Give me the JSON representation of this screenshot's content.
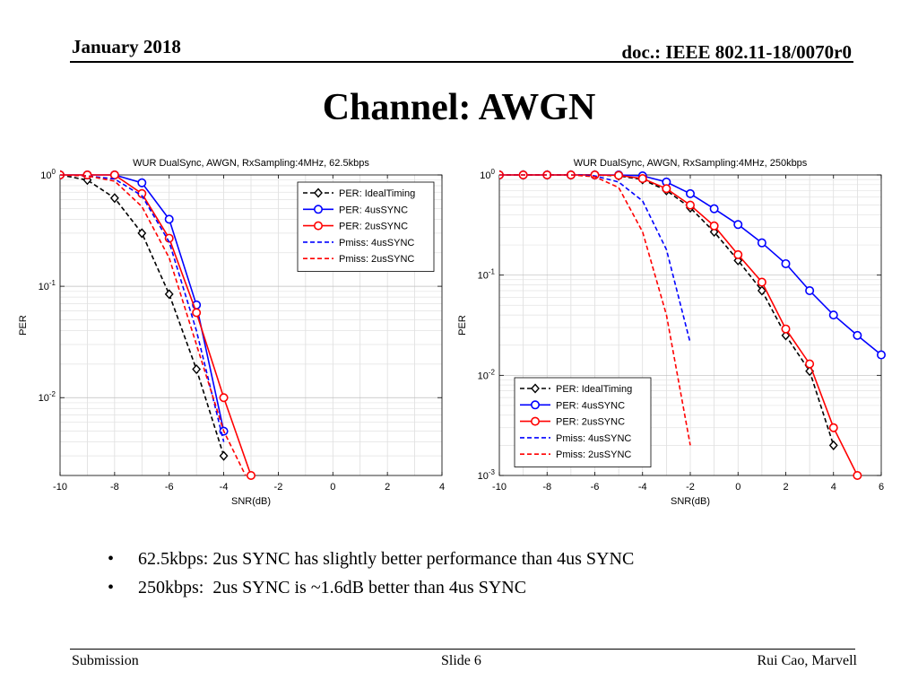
{
  "header": {
    "date": "January 2018",
    "doc": "doc.: IEEE 802.11-18/0070r0"
  },
  "title": "Channel: AWGN",
  "bullets": [
    "62.5kbps: 2us SYNC has slightly better performance than 4us SYNC",
    "250kbps:  2us SYNC is ~1.6dB better than 4us SYNC"
  ],
  "footer": {
    "left": "Submission",
    "center": "Slide 6",
    "right": "Rui Cao, Marvell"
  },
  "colors": {
    "ideal": "#000000",
    "sync4": "#0000ff",
    "sync2": "#ff0000"
  },
  "chart_data": [
    {
      "type": "line",
      "title": "WUR DualSync, AWGN, RxSampling:4MHz, 62.5kbps",
      "xlabel": "SNR(dB)",
      "ylabel": "PER",
      "xlim": [
        -10,
        4
      ],
      "ylim": [
        0.002,
        1
      ],
      "yscale": "log",
      "xticks": [
        "-10",
        "-8",
        "-6",
        "-4",
        "-2",
        "0",
        "2",
        "4"
      ],
      "yticks": [
        "10^0",
        "10^-1",
        "10^-2"
      ],
      "grid": true,
      "legend_position": "top-right",
      "series": [
        {
          "name": "PER: IdealTiming",
          "color": "#000000",
          "dash": "dashed",
          "marker": "diamond",
          "x": [
            -10,
            -9,
            -8,
            -7,
            -6,
            -5,
            -4
          ],
          "y": [
            1.0,
            0.9,
            0.62,
            0.3,
            0.085,
            0.018,
            0.003
          ]
        },
        {
          "name": "PER: 4usSYNC",
          "color": "#0000ff",
          "dash": "solid",
          "marker": "circle",
          "x": [
            -10,
            -9,
            -8,
            -7,
            -6,
            -5,
            -4
          ],
          "y": [
            1.0,
            1.0,
            1.0,
            0.85,
            0.4,
            0.068,
            0.005
          ]
        },
        {
          "name": "PER: 2usSYNC",
          "color": "#ff0000",
          "dash": "solid",
          "marker": "circle",
          "x": [
            -10,
            -9,
            -8,
            -7,
            -6,
            -5,
            -4,
            -3
          ],
          "y": [
            1.0,
            1.0,
            1.0,
            0.68,
            0.27,
            0.058,
            0.01,
            0.002
          ]
        },
        {
          "name": "Pmiss: 4usSYNC",
          "color": "#0000ff",
          "dash": "dashed",
          "marker": "none",
          "x": [
            -10,
            -9,
            -8,
            -7,
            -6,
            -5,
            -4
          ],
          "y": [
            1.0,
            0.98,
            0.92,
            0.65,
            0.25,
            0.04,
            0.004
          ]
        },
        {
          "name": "Pmiss: 2usSYNC",
          "color": "#ff0000",
          "dash": "dashed",
          "marker": "none",
          "x": [
            -10,
            -9,
            -8,
            -7,
            -6,
            -5,
            -4,
            -3.2
          ],
          "y": [
            1.0,
            0.98,
            0.88,
            0.52,
            0.18,
            0.03,
            0.005,
            0.002
          ]
        }
      ]
    },
    {
      "type": "line",
      "title": "WUR DualSync, AWGN, RxSampling:4MHz, 250kbps",
      "xlabel": "SNR(dB)",
      "ylabel": "PER",
      "xlim": [
        -10,
        6
      ],
      "ylim": [
        0.001,
        1
      ],
      "yscale": "log",
      "xticks": [
        "-10",
        "-8",
        "-6",
        "-4",
        "-2",
        "0",
        "2",
        "4",
        "6"
      ],
      "yticks": [
        "10^0",
        "10^-1",
        "10^-2",
        "10^-3"
      ],
      "grid": true,
      "legend_position": "bottom-center",
      "series": [
        {
          "name": "PER: IdealTiming",
          "color": "#000000",
          "dash": "dashed",
          "marker": "diamond",
          "x": [
            -10,
            -9,
            -8,
            -7,
            -6,
            -5,
            -4,
            -3,
            -2,
            -1,
            0,
            1,
            2,
            3,
            4
          ],
          "y": [
            1.0,
            1.0,
            1.0,
            1.0,
            1.0,
            0.98,
            0.9,
            0.7,
            0.47,
            0.27,
            0.14,
            0.07,
            0.025,
            0.011,
            0.002
          ]
        },
        {
          "name": "PER: 4usSYNC",
          "color": "#0000ff",
          "dash": "solid",
          "marker": "circle",
          "x": [
            -10,
            -9,
            -8,
            -7,
            -6,
            -5,
            -4,
            -3,
            -2,
            -1,
            0,
            1,
            2,
            3,
            4,
            5,
            6
          ],
          "y": [
            1.0,
            1.0,
            1.0,
            1.0,
            1.0,
            1.0,
            0.98,
            0.85,
            0.65,
            0.46,
            0.32,
            0.21,
            0.13,
            0.07,
            0.04,
            0.025,
            0.016
          ]
        },
        {
          "name": "PER: 2usSYNC",
          "color": "#ff0000",
          "dash": "solid",
          "marker": "circle",
          "x": [
            -10,
            -9,
            -8,
            -7,
            -6,
            -5,
            -4,
            -3,
            -2,
            -1,
            0,
            1,
            2,
            3,
            4,
            5
          ],
          "y": [
            1.0,
            1.0,
            1.0,
            1.0,
            1.0,
            0.99,
            0.92,
            0.73,
            0.5,
            0.31,
            0.16,
            0.085,
            0.029,
            0.013,
            0.003,
            0.001
          ]
        },
        {
          "name": "Pmiss: 4usSYNC",
          "color": "#0000ff",
          "dash": "dashed",
          "marker": "none",
          "x": [
            -10,
            -9,
            -8,
            -7,
            -6,
            -5,
            -4,
            -3,
            -2
          ],
          "y": [
            1.0,
            1.0,
            1.0,
            1.0,
            0.98,
            0.85,
            0.55,
            0.18,
            0.021
          ]
        },
        {
          "name": "Pmiss: 2usSYNC",
          "color": "#ff0000",
          "dash": "dashed",
          "marker": "none",
          "x": [
            -10,
            -9,
            -8,
            -7,
            -6,
            -5,
            -4,
            -3,
            -2
          ],
          "y": [
            1.0,
            1.0,
            1.0,
            1.0,
            0.96,
            0.75,
            0.27,
            0.04,
            0.002
          ]
        }
      ]
    }
  ]
}
